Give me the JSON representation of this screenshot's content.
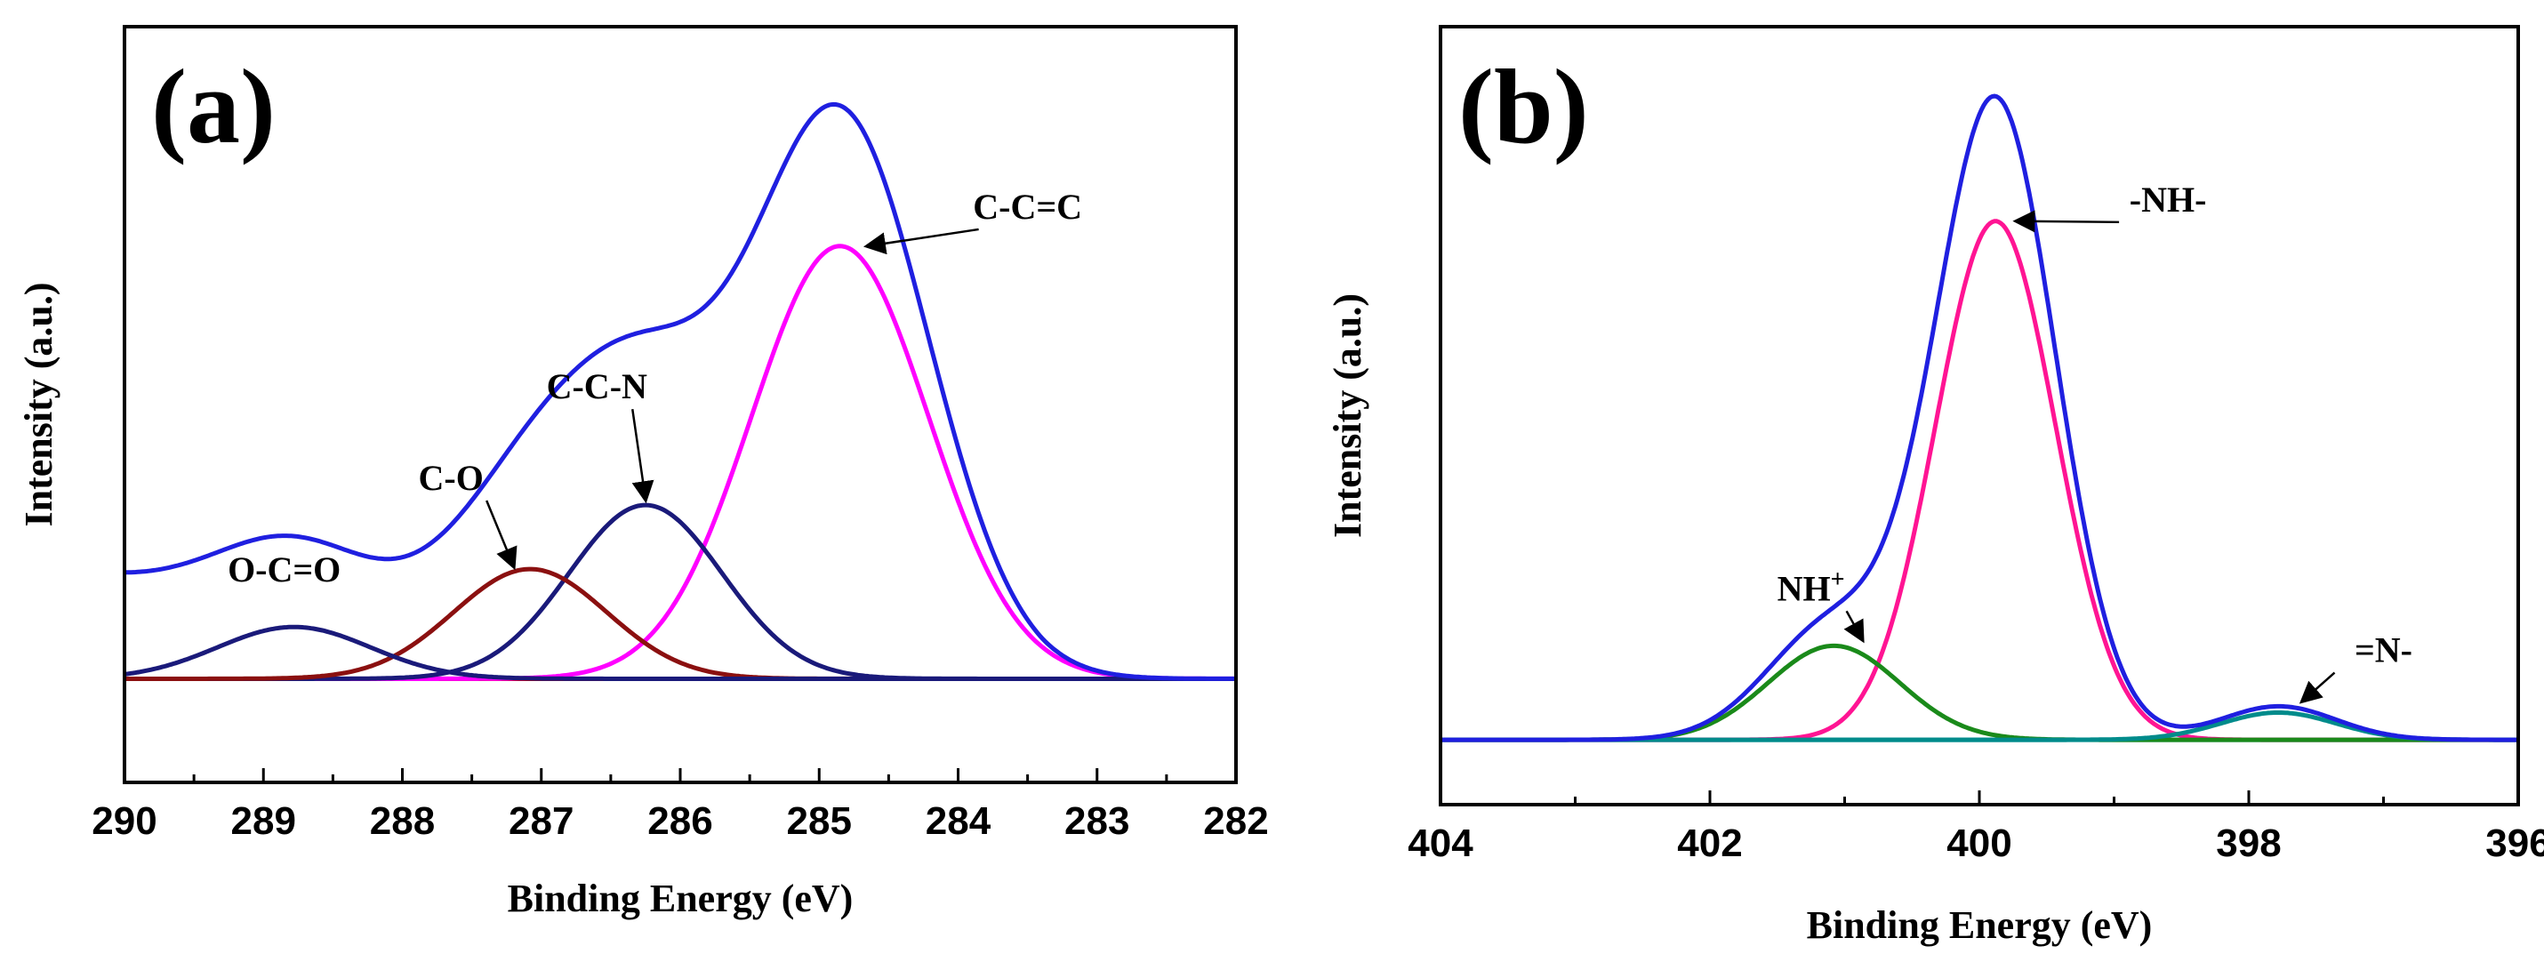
{
  "chart_data": [
    {
      "type": "line",
      "panel_label": "(a)",
      "xlabel": "Binding Energy (eV)",
      "ylabel": "Intensity (a.u.)",
      "xlim": [
        290,
        282
      ],
      "ylim": [
        -0.17,
        1.07
      ],
      "xticks": [
        290,
        289,
        288,
        287,
        286,
        285,
        284,
        283,
        282
      ],
      "x_reversed": true,
      "y_ticks_labeled": false,
      "grid": false,
      "legend": "none",
      "baseline": {
        "name": "baseline",
        "y": 0,
        "color": "#cc0000"
      },
      "series": [
        {
          "name": "envelope",
          "color": "#1f1fe0",
          "kind": "envelope",
          "offset": {
            "a": 0.075,
            "b": 0.055
          }
        },
        {
          "name": "C-C=C",
          "color": "#ff00ff",
          "kind": "gaussian",
          "center": 284.85,
          "height": 0.71,
          "fwhm": 1.5
        },
        {
          "name": "C-C-N",
          "color": "#1a1a7a",
          "kind": "gaussian",
          "center": 286.25,
          "height": 0.285,
          "fwhm": 1.3
        },
        {
          "name": "C-O",
          "color": "#8b1010",
          "kind": "gaussian",
          "center": 287.08,
          "height": 0.18,
          "fwhm": 1.3
        },
        {
          "name": "O-C=O",
          "color": "#1a1a7a",
          "kind": "gaussian",
          "center": 288.78,
          "height": 0.085,
          "fwhm": 1.3
        }
      ],
      "annotations": [
        {
          "text": "C-C=C",
          "x": 283.5,
          "y": 0.755,
          "arrow_to": [
            284.65,
            0.71
          ]
        },
        {
          "text": "C-C-N",
          "x": 286.6,
          "y": 0.46,
          "arrow_to": [
            286.25,
            0.295
          ]
        },
        {
          "text": "C-O",
          "x": 287.65,
          "y": 0.31,
          "arrow_to": [
            287.2,
            0.185
          ]
        },
        {
          "text": "O-C=O",
          "x": 288.85,
          "y": 0.16,
          "arrow_to": null
        }
      ]
    },
    {
      "type": "line",
      "panel_label": "(b)",
      "xlabel": "Binding Energy (eV)",
      "ylabel": "Intensity (a.u.)",
      "xlim": [
        404,
        396
      ],
      "ylim": [
        -0.1,
        1.1
      ],
      "xticks": [
        404,
        402,
        400,
        398,
        396
      ],
      "x_reversed": true,
      "y_ticks_labeled": false,
      "grid": false,
      "legend": "none",
      "baseline": {
        "name": "baseline",
        "y": 0,
        "color": "#009999"
      },
      "series": [
        {
          "name": "envelope",
          "color": "#1f1fe0",
          "kind": "envelope"
        },
        {
          "name": "-NH-",
          "color": "#ff1493",
          "kind": "gaussian",
          "center": 399.88,
          "height": 0.8,
          "fwhm": 1.05
        },
        {
          "name": "NH+",
          "color": "#1a8a1a",
          "kind": "gaussian",
          "center": 401.08,
          "height": 0.145,
          "fwhm": 1.15
        },
        {
          "name": "=N-",
          "color": "#008b8b",
          "kind": "gaussian",
          "center": 397.78,
          "height": 0.042,
          "fwhm": 1.0
        }
      ],
      "annotations": [
        {
          "text": "-NH-",
          "x": 398.6,
          "y": 0.815,
          "arrow_to": [
            399.72,
            0.8
          ]
        },
        {
          "text": "NH",
          "sup": "+",
          "x": 401.25,
          "y": 0.215,
          "arrow_to": [
            400.87,
            0.155
          ]
        },
        {
          "text": "=N-",
          "x": 397.0,
          "y": 0.12,
          "arrow_to": [
            397.6,
            0.06
          ]
        }
      ]
    }
  ]
}
